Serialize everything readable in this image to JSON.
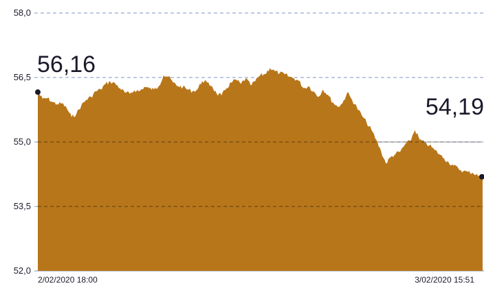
{
  "chart_data": {
    "type": "area",
    "title": "",
    "xlabel": "",
    "ylabel": "",
    "ylim": [
      52.0,
      58.0
    ],
    "yticks": [
      52.0,
      53.5,
      55.0,
      56.5,
      58.0
    ],
    "ytick_labels": [
      "52,0",
      "53,5",
      "55,0",
      "56,5",
      "58,0"
    ],
    "xlim_labels": [
      "2/02/2020 18:00",
      "3/02/2020 15:51"
    ],
    "grid": "horizontal-dashed",
    "colors": {
      "area": "#B8761A",
      "grid": "#7E95C2",
      "grid_inside": "#3a2a10",
      "marker": "#1a1a2a",
      "text": "#1a1a2a"
    },
    "start": {
      "value": 56.16,
      "label": "56,16"
    },
    "end": {
      "value": 54.19,
      "label": "54,19"
    },
    "series": [
      {
        "values": [
          56.16,
          56.0,
          56.02,
          55.93,
          55.88,
          55.9,
          55.78,
          55.58,
          55.66,
          55.85,
          55.98,
          56.05,
          56.18,
          56.22,
          56.35,
          56.4,
          56.36,
          56.25,
          56.15,
          56.12,
          56.2,
          56.18,
          56.28,
          56.25,
          56.22,
          56.3,
          56.55,
          56.52,
          56.38,
          56.3,
          56.28,
          56.22,
          56.18,
          56.22,
          56.42,
          56.38,
          56.3,
          56.12,
          56.08,
          56.25,
          56.38,
          56.45,
          56.35,
          56.48,
          56.32,
          56.42,
          56.55,
          56.58,
          56.72,
          56.65,
          56.6,
          56.58,
          56.52,
          56.48,
          56.42,
          56.25,
          56.3,
          56.18,
          56.05,
          56.22,
          56.1,
          55.92,
          55.82,
          55.9,
          56.15,
          55.98,
          55.8,
          55.62,
          55.45,
          55.28,
          55.05,
          54.78,
          54.5,
          54.65,
          54.72,
          54.78,
          54.95,
          55.02,
          55.28,
          55.05,
          54.98,
          54.92,
          54.82,
          54.72,
          54.62,
          54.52,
          54.45,
          54.38,
          54.32,
          54.3,
          54.28,
          54.22,
          54.19
        ]
      }
    ]
  }
}
